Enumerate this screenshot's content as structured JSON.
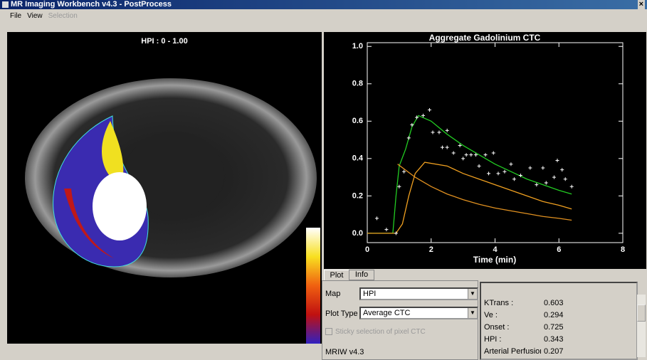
{
  "window": {
    "title": "MR Imaging Workbench v4.3 - PostProcess",
    "close": "×"
  },
  "menu": [
    "File",
    "View",
    "Selection"
  ],
  "image": {
    "label": "HPI : 0 - 1.00"
  },
  "chart_data": {
    "type": "line",
    "title": "Aggregate Gadolinium CTC",
    "x_label": "Time (min)",
    "xlim": [
      0,
      8
    ],
    "xticks": [
      0,
      2,
      4,
      6,
      8
    ],
    "ylim": [
      -0.05,
      1.02
    ],
    "yticks": [
      {
        "value": 0,
        "label": "0.0"
      },
      0.2,
      0.4,
      0.6,
      0.8,
      {
        "value": 1,
        "label": "1.0"
      }
    ],
    "series": [
      {
        "color": "#22cc22",
        "style": "line",
        "x": [
          0,
          0.8,
          0.9,
          1.0,
          1.2,
          1.4,
          1.6,
          2,
          2.5,
          3,
          3.5,
          4,
          4.5,
          5,
          5.5,
          6,
          6.4
        ],
        "values": [
          0,
          0,
          0.2,
          0.36,
          0.45,
          0.57,
          0.63,
          0.6,
          0.53,
          0.47,
          0.42,
          0.37,
          0.33,
          0.29,
          0.26,
          0.23,
          0.21
        ]
      },
      {
        "color": "#f0a020",
        "style": "line",
        "x": [
          0,
          0.9,
          1.1,
          1.3,
          1.5,
          1.8,
          2.5,
          3,
          3.5,
          4,
          4.5,
          5,
          5.5,
          6,
          6.4
        ],
        "values": [
          0,
          0,
          0.05,
          0.2,
          0.32,
          0.38,
          0.36,
          0.32,
          0.29,
          0.26,
          0.23,
          0.2,
          0.17,
          0.15,
          0.13
        ]
      },
      {
        "color": "#e09020",
        "style": "line",
        "x": [
          0.95,
          1.5,
          2,
          2.5,
          3,
          3.5,
          4,
          4.5,
          5,
          5.5,
          6,
          6.4
        ],
        "values": [
          0.37,
          0.3,
          0.25,
          0.21,
          0.18,
          0.155,
          0.135,
          0.12,
          0.105,
          0.09,
          0.08,
          0.07
        ]
      },
      {
        "color": "#ffffff",
        "style": "markers",
        "x": [
          0.3,
          0.6,
          0.9,
          1.0,
          1.15,
          1.3,
          1.4,
          1.55,
          1.75,
          1.95,
          2.05,
          2.25,
          2.35,
          2.5,
          2.5,
          2.7,
          2.9,
          3.0,
          3.1,
          3.25,
          3.4,
          3.5,
          3.7,
          3.8,
          3.95,
          4.1,
          4.3,
          4.5,
          4.6,
          4.8,
          5.1,
          5.3,
          5.5,
          5.6,
          5.85,
          5.95,
          6.1,
          6.2,
          6.4
        ],
        "values": [
          0.08,
          0.02,
          0.0,
          0.25,
          0.33,
          0.51,
          0.58,
          0.62,
          0.63,
          0.66,
          0.54,
          0.54,
          0.46,
          0.46,
          0.55,
          0.43,
          0.47,
          0.4,
          0.42,
          0.42,
          0.42,
          0.36,
          0.42,
          0.32,
          0.43,
          0.32,
          0.33,
          0.37,
          0.29,
          0.31,
          0.35,
          0.26,
          0.35,
          0.27,
          0.3,
          0.39,
          0.34,
          0.29,
          0.25
        ]
      }
    ]
  },
  "tabs": [
    "Plot",
    "Info"
  ],
  "controls": {
    "map_label": "Map",
    "map_value": "HPI",
    "plot_type_label": "Plot Type",
    "plot_type_value": "Average CTC",
    "sticky": "Sticky selection of pixel CTC",
    "version": "MRIW v4.3"
  },
  "params": [
    [
      "KTrans :",
      0.603
    ],
    [
      "Ve :",
      0.294
    ],
    [
      "Onset :",
      0.725
    ],
    [
      "HPI :",
      0.343
    ],
    [
      "Arterial Perfusior",
      0.207
    ]
  ]
}
